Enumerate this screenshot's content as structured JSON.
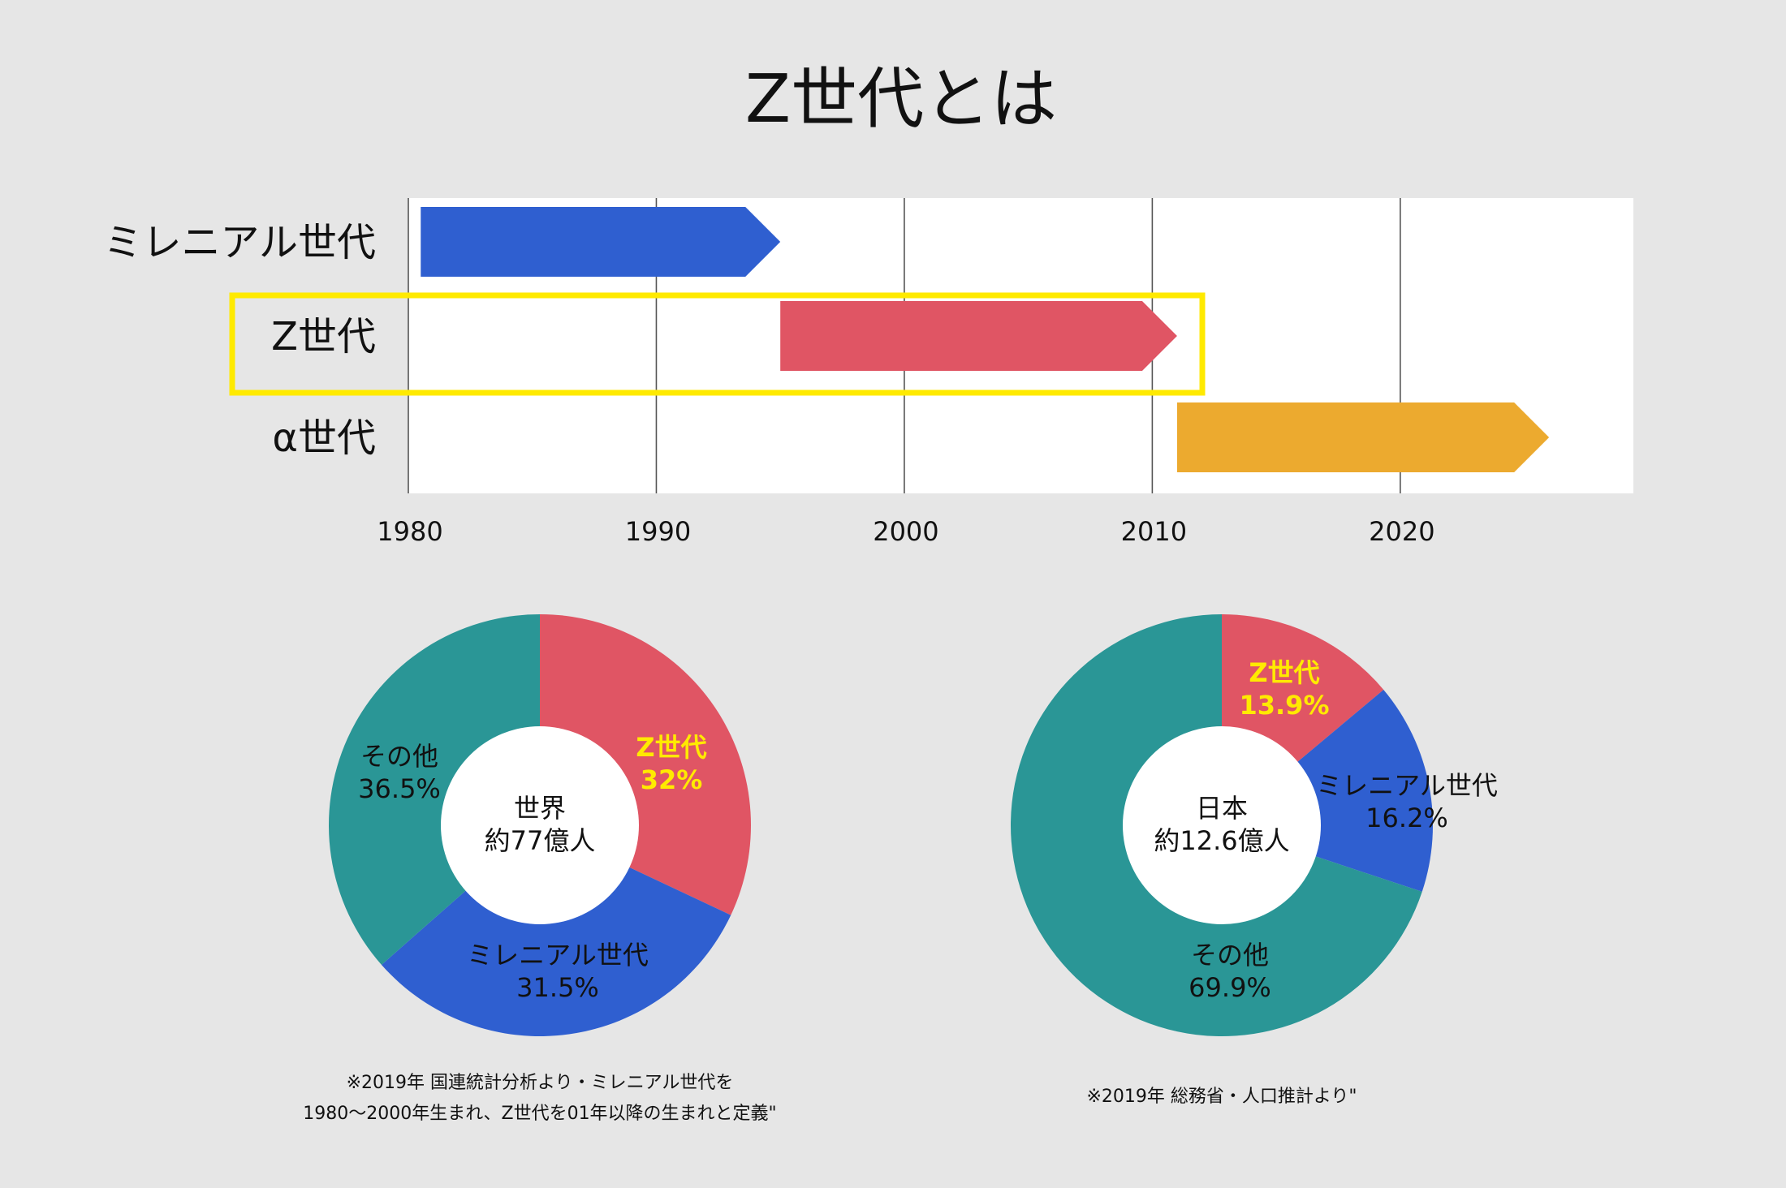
{
  "title": "Z世代とは",
  "colors": {
    "background": "#e6e6e6",
    "plot_background": "#ffffff",
    "millennial": "#2f5fd0",
    "genz": "#e05564",
    "alpha": "#ecaa2f",
    "other": "#2a9696",
    "highlight": "#ffea00",
    "text": "#111111"
  },
  "chart_data": [
    {
      "type": "bar",
      "orientation": "horizontal",
      "categories": [
        "ミレニアル世代",
        "Z世代",
        "α世代"
      ],
      "series": [
        {
          "category": "ミレニアル世代",
          "start": 1980.5,
          "end": 1995,
          "color": "#2f5fd0"
        },
        {
          "category": "Z世代",
          "start": 1995,
          "end": 2011,
          "color": "#e05564"
        },
        {
          "category": "α世代",
          "start": 2011,
          "end": 2026,
          "color": "#ecaa2f"
        }
      ],
      "x_ticks": [
        1980,
        1990,
        2000,
        2010,
        2020
      ],
      "xlim": [
        1980,
        2029.4
      ],
      "grid": true,
      "highlighted_category": "Z世代"
    },
    {
      "type": "pie",
      "center_label": [
        "世界",
        "約77億人"
      ],
      "slices": [
        {
          "label": "Z世代",
          "value": 32,
          "value_label": "32%",
          "color": "#e05564",
          "emphasis": true
        },
        {
          "label": "ミレニアル世代",
          "value": 31.5,
          "value_label": "31.5%",
          "color": "#2f5fd0",
          "emphasis": false
        },
        {
          "label": "その他",
          "value": 36.5,
          "value_label": "36.5%",
          "color": "#2a9696",
          "emphasis": false
        }
      ],
      "note": [
        "※2019年 国連統計分析より・ミレニアル世代を",
        "1980〜2000年生まれ、Z世代を01年以降の生まれと定義\""
      ]
    },
    {
      "type": "pie",
      "center_label": [
        "日本",
        "約12.6億人"
      ],
      "slices": [
        {
          "label": "Z世代",
          "value": 13.9,
          "value_label": "13.9%",
          "color": "#e05564",
          "emphasis": true
        },
        {
          "label": "ミレニアル世代",
          "value": 16.2,
          "value_label": "16.2%",
          "color": "#2f5fd0",
          "emphasis": false
        },
        {
          "label": "その他",
          "value": 69.9,
          "value_label": "69.9%",
          "color": "#2a9696",
          "emphasis": false
        }
      ],
      "note": [
        "※2019年 総務省・人口推計より\""
      ]
    }
  ]
}
